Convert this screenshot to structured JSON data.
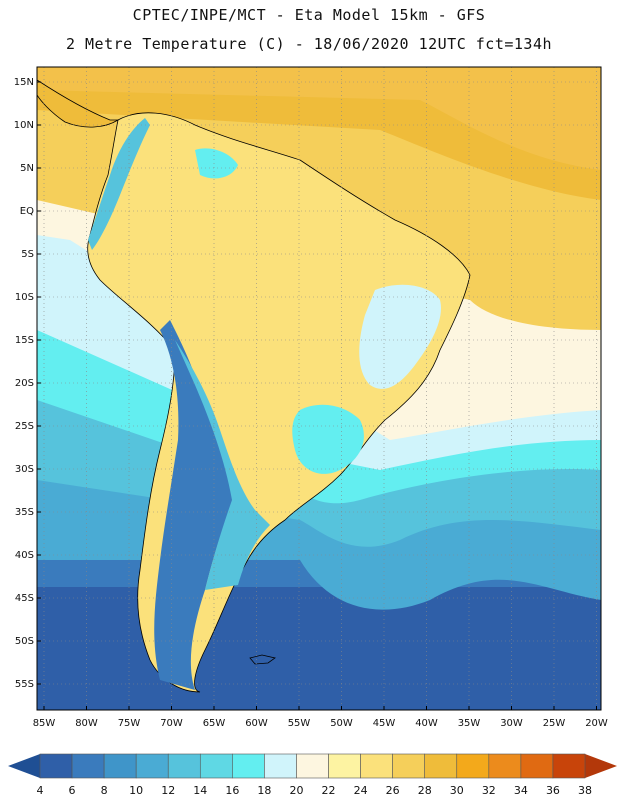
{
  "header": {
    "line1": "CPTEC/INPE/MCT -  Eta Model 15km - GFS",
    "line2": "2 Metre Temperature (C) - 18/06/2020 12UTC fct=134h"
  },
  "map": {
    "lat_labels": [
      "15N",
      "10N",
      "5N",
      "EQ",
      "5S",
      "10S",
      "15S",
      "20S",
      "25S",
      "30S",
      "35S",
      "40S",
      "45S",
      "50S",
      "55S"
    ],
    "lon_labels": [
      "85W",
      "80W",
      "75W",
      "70W",
      "65W",
      "60W",
      "55W",
      "50W",
      "45W",
      "40W",
      "35W",
      "30W",
      "25W",
      "20W"
    ],
    "grid": true
  },
  "legend": {
    "values": [
      "4",
      "6",
      "8",
      "10",
      "12",
      "14",
      "16",
      "18",
      "20",
      "22",
      "24",
      "26",
      "28",
      "30",
      "32",
      "34",
      "36",
      "38"
    ],
    "colors": [
      "#2f5fa8",
      "#3a7bbd",
      "#3f95c9",
      "#4aabd4",
      "#56c3dc",
      "#5fd8e4",
      "#63eef0",
      "#d0f4fb",
      "#fdf6e0",
      "#fdf3a2",
      "#fbe17b",
      "#f5cf5a",
      "#efbc3a",
      "#f3a91b",
      "#ec8b1c",
      "#e06a12",
      "#c8440a"
    ],
    "low_arrow_color": "#1f4f94",
    "high_arrow_color": "#b3380a"
  }
}
